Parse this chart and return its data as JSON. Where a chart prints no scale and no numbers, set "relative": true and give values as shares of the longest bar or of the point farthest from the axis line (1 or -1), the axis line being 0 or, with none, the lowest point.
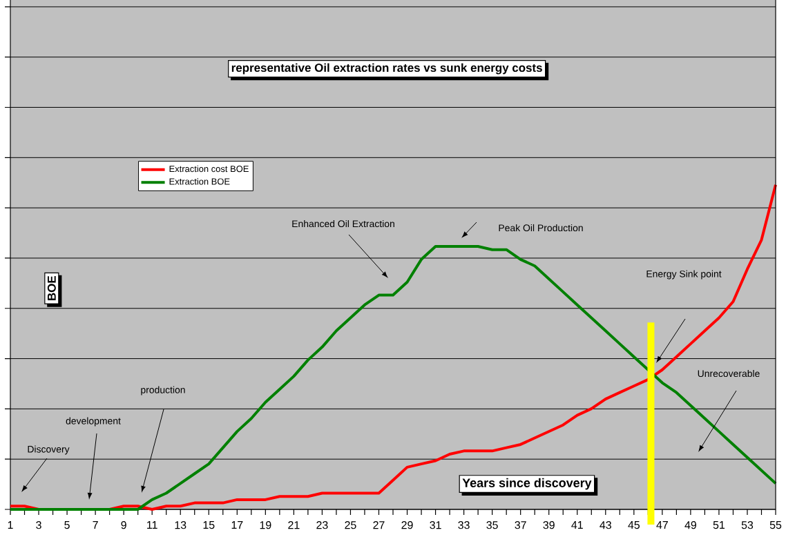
{
  "chart_data": {
    "type": "line",
    "title": "representative Oil extraction rates vs sunk energy costs",
    "xlabel": "Years since discovery",
    "ylabel": "BOE",
    "relative": true,
    "grid": "y",
    "legend": "top left",
    "x": [
      1,
      2,
      3,
      4,
      5,
      6,
      7,
      8,
      9,
      10,
      11,
      12,
      13,
      14,
      15,
      16,
      17,
      18,
      19,
      20,
      21,
      22,
      23,
      24,
      25,
      26,
      27,
      28,
      29,
      30,
      31,
      32,
      33,
      34,
      35,
      36,
      37,
      38,
      39,
      40,
      41,
      42,
      43,
      44,
      45,
      46,
      47,
      48,
      49,
      50,
      51,
      52,
      53,
      54,
      55
    ],
    "xlim": [
      1,
      55
    ],
    "xticks": [
      1,
      {
        "value": 2,
        "label": null
      },
      3,
      {
        "value": 4,
        "label": null
      },
      5,
      {
        "value": 6,
        "label": null
      },
      7,
      {
        "value": 8,
        "label": null
      },
      9,
      {
        "value": 10,
        "label": null
      },
      11,
      {
        "value": 12,
        "label": null
      },
      13,
      {
        "value": 14,
        "label": null
      },
      15,
      {
        "value": 16,
        "label": null
      },
      17,
      {
        "value": 18,
        "label": null
      },
      19,
      {
        "value": 20,
        "label": null
      },
      21,
      {
        "value": 22,
        "label": null
      },
      23,
      {
        "value": 24,
        "label": null
      },
      25,
      {
        "value": 26,
        "label": null
      },
      27,
      {
        "value": 28,
        "label": null
      },
      29,
      {
        "value": 30,
        "label": null
      },
      31,
      {
        "value": 32,
        "label": null
      },
      33,
      {
        "value": 34,
        "label": null
      },
      35,
      {
        "value": 36,
        "label": null
      },
      37,
      {
        "value": 38,
        "label": null
      },
      39,
      {
        "value": 40,
        "label": null
      },
      41,
      {
        "value": 42,
        "label": null
      },
      43,
      {
        "value": 44,
        "label": null
      },
      45,
      {
        "value": 46,
        "label": null
      },
      47,
      {
        "value": 48,
        "label": null
      },
      49,
      {
        "value": 50,
        "label": null
      },
      51,
      {
        "value": 52,
        "label": null
      },
      53,
      {
        "value": 54,
        "label": null
      },
      55
    ],
    "series": [
      {
        "name": "Extraction cost BOE",
        "color": "#ff0000",
        "values": [
          0.01,
          0.01,
          0,
          0,
          0,
          0,
          0,
          0,
          0.01,
          0.01,
          0,
          0.01,
          0.01,
          0.02,
          0.02,
          0.02,
          0.03,
          0.03,
          0.03,
          0.04,
          0.04,
          0.04,
          0.05,
          0.05,
          0.05,
          0.05,
          0.05,
          0.09,
          0.13,
          0.14,
          0.15,
          0.17,
          0.18,
          0.18,
          0.18,
          0.19,
          0.2,
          0.22,
          0.24,
          0.26,
          0.29,
          0.31,
          0.34,
          0.36,
          0.38,
          0.4,
          0.43,
          0.47,
          0.51,
          0.55,
          0.59,
          0.64,
          0.74,
          0.83,
          1
        ]
      },
      {
        "name": "Extraction BOE",
        "color": "#008000",
        "values": [
          0,
          0,
          0,
          0,
          0,
          0,
          0,
          0,
          0,
          0,
          0.03,
          0.05,
          0.08,
          0.11,
          0.14,
          0.19,
          0.24,
          0.28,
          0.33,
          0.37,
          0.41,
          0.46,
          0.5,
          0.55,
          0.59,
          0.63,
          0.66,
          0.66,
          0.7,
          0.77,
          0.81,
          0.81,
          0.81,
          0.81,
          0.8,
          0.8,
          0.77,
          0.75,
          0.71,
          0.67,
          0.63,
          0.59,
          0.55,
          0.51,
          0.47,
          0.43,
          0.39,
          0.36,
          0.32,
          0.28,
          0.24,
          0.2,
          0.16,
          0.12,
          0.08
        ]
      }
    ],
    "ref_lines": [
      {
        "axis": "x",
        "value": 46.2,
        "color": "#ffff00"
      }
    ],
    "annotations": [
      "Discovery",
      "development",
      "production",
      "Enhanced Oil Extraction",
      "Peak Oil Production",
      "Energy Sink point",
      "Unrecoverable"
    ]
  }
}
